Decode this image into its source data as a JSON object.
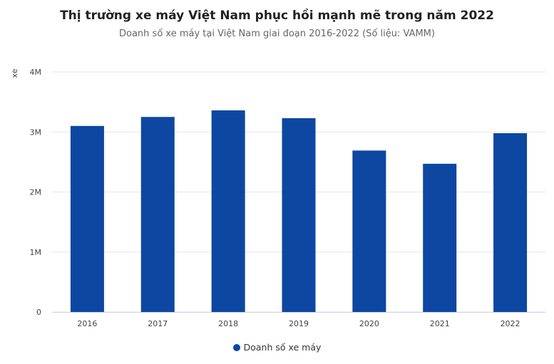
{
  "chart_data": {
    "type": "bar",
    "title": "Thị trường xe máy Việt Nam phục hồi mạnh mẽ trong năm 2022",
    "subtitle": "Doanh số xe máy tại Việt Nam giai đoạn 2016-2022 (Số liệu: VAMM)",
    "ylabel": "xe",
    "xlabel": "",
    "categories": [
      "2016",
      "2017",
      "2018",
      "2019",
      "2020",
      "2021",
      "2022"
    ],
    "series": [
      {
        "name": "Doanh số xe máy",
        "values": [
          3100000,
          3250000,
          3360000,
          3230000,
          2690000,
          2470000,
          2980000
        ],
        "color": "#0d47a1"
      }
    ],
    "ylim": [
      0,
      4000000
    ],
    "yticks": [
      {
        "v": 0,
        "label": "0"
      },
      {
        "v": 1000000,
        "label": "1M"
      },
      {
        "v": 2000000,
        "label": "2M"
      },
      {
        "v": 3000000,
        "label": "3M"
      },
      {
        "v": 4000000,
        "label": "4M"
      }
    ],
    "grid": true,
    "legend": "bottom"
  }
}
